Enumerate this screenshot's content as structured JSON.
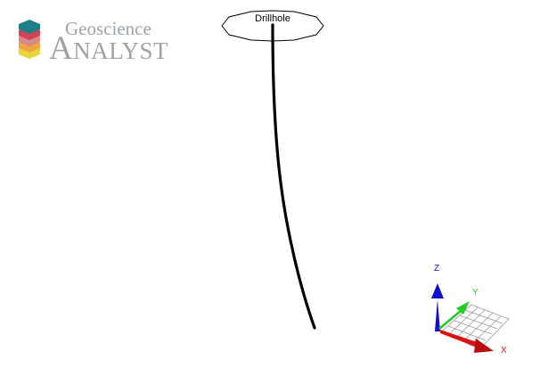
{
  "logo": {
    "line1": "Geoscience",
    "line2_first": "A",
    "line2_rest": "NALYST",
    "color": "#9ea3a8",
    "stack_colors": [
      "#1e7f86",
      "#d2435a",
      "#d98a86",
      "#f0a640",
      "#e6d63a"
    ]
  },
  "scene": {
    "drillhole_label": "Drillhole",
    "trace_color": "#000000"
  },
  "axes": {
    "z_label": "Z",
    "y_label": "Y",
    "x_label": "X",
    "z_color": "#1010cc",
    "y_color": "#22cc22",
    "x_color": "#dd1111"
  }
}
